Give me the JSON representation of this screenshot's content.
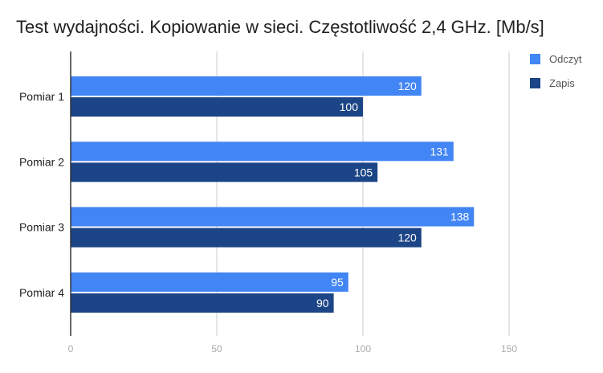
{
  "chart_data": {
    "type": "bar",
    "orientation": "horizontal",
    "title": "Test wydajności. Kopiowanie w sieci. Częstotliwość 2,4 GHz. [Mb/s]",
    "categories": [
      "Pomiar 1",
      "Pomiar 2",
      "Pomiar 3",
      "Pomiar 4"
    ],
    "series": [
      {
        "name": "Odczyt",
        "values": [
          120,
          131,
          138,
          95
        ],
        "color": "#4285f4"
      },
      {
        "name": "Zapis",
        "values": [
          100,
          105,
          120,
          90
        ],
        "color": "#1c4587"
      }
    ],
    "xlim": [
      0,
      150
    ],
    "xticks": [
      "0",
      "50",
      "100",
      "150"
    ],
    "grid": true,
    "legend_position": "right",
    "data_labels": true
  }
}
